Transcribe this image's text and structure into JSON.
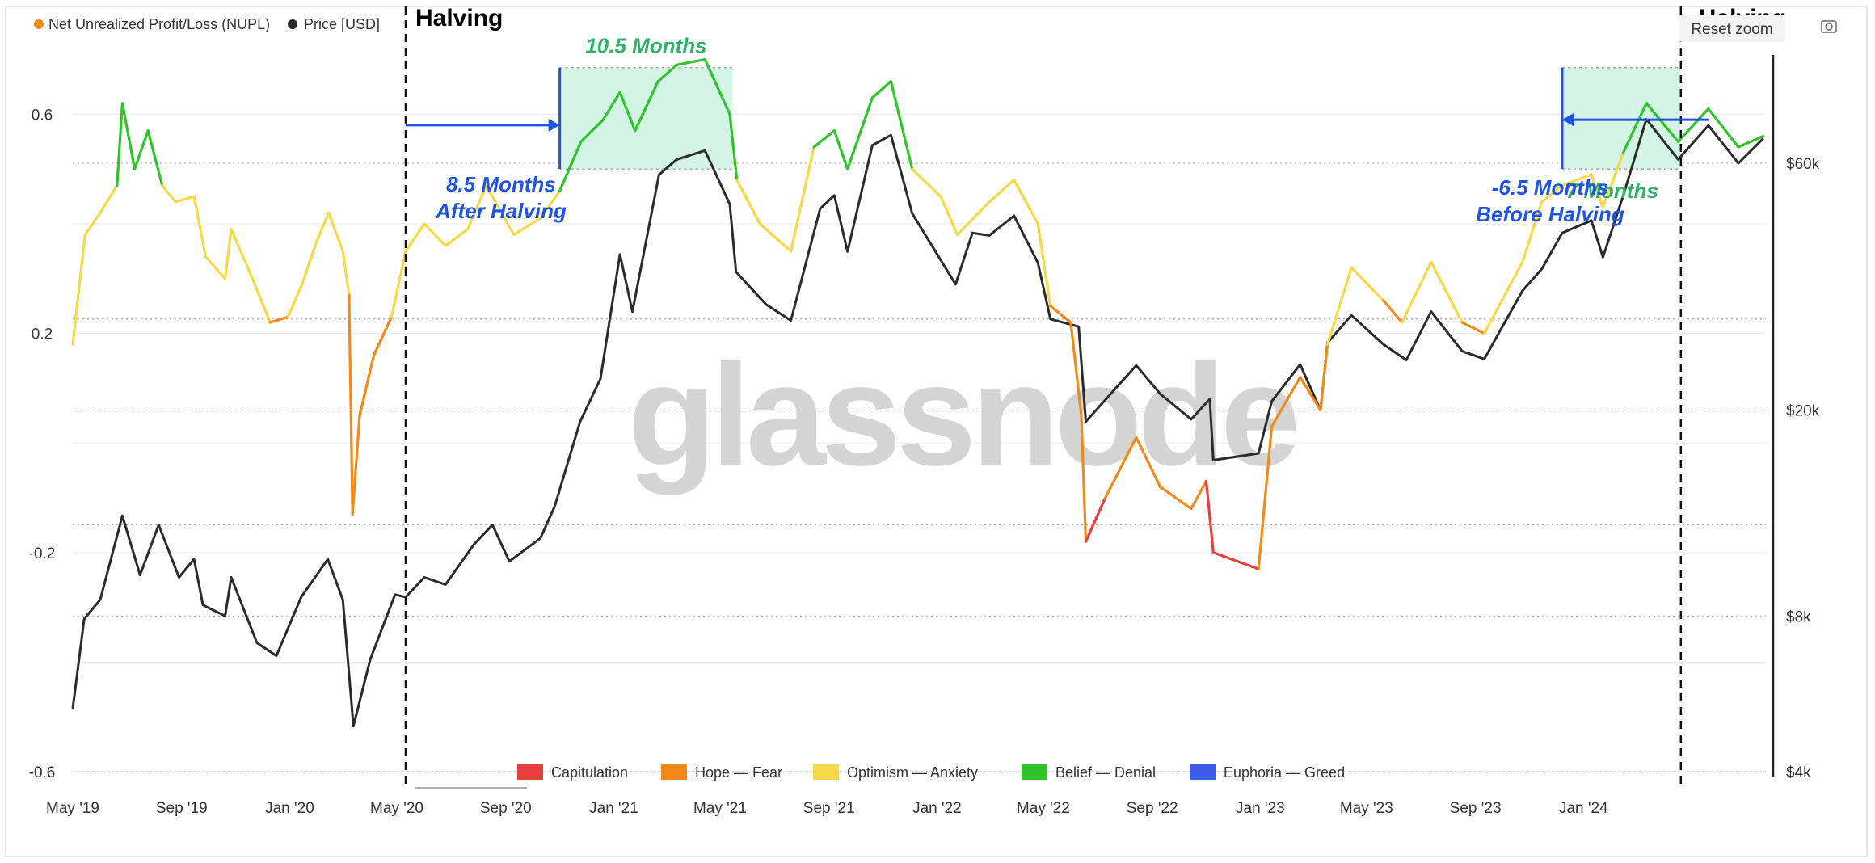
{
  "toolbar": {
    "reset_zoom_label": "Reset zoom"
  },
  "watermark": "glassnode",
  "colors": {
    "capitulation": "#e8403f",
    "hope_fear": "#f28a1a",
    "optimism_anxiety": "#f5d949",
    "belief_denial": "#2ec42a",
    "euphoria_greed": "#3b5ce8",
    "price": "#2b2b2b",
    "annotation_blue": "#1f53e0",
    "annotation_green": "#2fb06b",
    "highlight_fill": "#d3f3e5"
  },
  "chart_data": {
    "type": "line",
    "legend": {
      "top": [
        "Net Unrealized Profit/Loss (NUPL)",
        "Price [USD]"
      ],
      "bottom": [
        "Capitulation",
        "Hope — Fear",
        "Optimism — Anxiety",
        "Belief — Denial",
        "Euphoria — Greed"
      ]
    },
    "x_ticks": [
      "May '19",
      "Sep '19",
      "Jan '20",
      "May '20",
      "Sep '20",
      "Jan '21",
      "May '21",
      "Sep '21",
      "Jan '22",
      "May '22",
      "Sep '22",
      "Jan '23",
      "May '23",
      "Sep '23",
      "Jan '24"
    ],
    "xlim": [
      "2019-05-01",
      "2024-07-25"
    ],
    "y_left": {
      "ticks": [
        "0.6",
        "0.2",
        "-0.2",
        "-0.6"
      ],
      "ylim": [
        -0.6,
        0.72
      ]
    },
    "y_right": {
      "scale": "log",
      "ticks": [
        "$60k",
        "$20k",
        "$8k",
        "$4k"
      ],
      "ylim": [
        4000,
        100000
      ]
    },
    "series": [
      {
        "name": "Net Unrealized Profit/Loss (NUPL)",
        "axis": "left",
        "points": [
          [
            "2019-05-01",
            0.18
          ],
          [
            "2019-05-15",
            0.38
          ],
          [
            "2019-06-01",
            0.42
          ],
          [
            "2019-06-20",
            0.47
          ],
          [
            "2019-06-26",
            0.62
          ],
          [
            "2019-07-10",
            0.5
          ],
          [
            "2019-07-25",
            0.57
          ],
          [
            "2019-08-10",
            0.47
          ],
          [
            "2019-08-25",
            0.44
          ],
          [
            "2019-09-15",
            0.45
          ],
          [
            "2019-09-28",
            0.34
          ],
          [
            "2019-10-20",
            0.3
          ],
          [
            "2019-10-27",
            0.39
          ],
          [
            "2019-11-20",
            0.3
          ],
          [
            "2019-12-10",
            0.22
          ],
          [
            "2019-12-30",
            0.23
          ],
          [
            "2020-01-15",
            0.29
          ],
          [
            "2020-02-01",
            0.37
          ],
          [
            "2020-02-14",
            0.42
          ],
          [
            "2020-03-01",
            0.35
          ],
          [
            "2020-03-08",
            0.27
          ],
          [
            "2020-03-12",
            -0.13
          ],
          [
            "2020-03-20",
            0.05
          ],
          [
            "2020-04-05",
            0.16
          ],
          [
            "2020-04-25",
            0.23
          ],
          [
            "2020-05-11",
            0.35
          ],
          [
            "2020-06-01",
            0.4
          ],
          [
            "2020-06-25",
            0.36
          ],
          [
            "2020-07-20",
            0.39
          ],
          [
            "2020-08-10",
            0.47
          ],
          [
            "2020-09-10",
            0.38
          ],
          [
            "2020-10-10",
            0.41
          ],
          [
            "2020-11-01",
            0.46
          ],
          [
            "2020-11-25",
            0.55
          ],
          [
            "2020-12-20",
            0.59
          ],
          [
            "2021-01-08",
            0.64
          ],
          [
            "2021-01-25",
            0.57
          ],
          [
            "2021-02-20",
            0.66
          ],
          [
            "2021-03-13",
            0.69
          ],
          [
            "2021-04-14",
            0.7
          ],
          [
            "2021-05-12",
            0.6
          ],
          [
            "2021-05-20",
            0.48
          ],
          [
            "2021-06-15",
            0.4
          ],
          [
            "2021-07-20",
            0.35
          ],
          [
            "2021-08-15",
            0.54
          ],
          [
            "2021-09-07",
            0.57
          ],
          [
            "2021-09-22",
            0.5
          ],
          [
            "2021-10-20",
            0.63
          ],
          [
            "2021-11-10",
            0.66
          ],
          [
            "2021-12-04",
            0.5
          ],
          [
            "2022-01-05",
            0.45
          ],
          [
            "2022-01-24",
            0.38
          ],
          [
            "2022-03-01",
            0.44
          ],
          [
            "2022-03-29",
            0.48
          ],
          [
            "2022-04-25",
            0.4
          ],
          [
            "2022-05-09",
            0.25
          ],
          [
            "2022-06-01",
            0.22
          ],
          [
            "2022-06-13",
            0.05
          ],
          [
            "2022-06-18",
            -0.18
          ],
          [
            "2022-07-10",
            -0.1
          ],
          [
            "2022-08-14",
            0.01
          ],
          [
            "2022-09-10",
            -0.08
          ],
          [
            "2022-10-15",
            -0.12
          ],
          [
            "2022-11-01",
            -0.07
          ],
          [
            "2022-11-09",
            -0.2
          ],
          [
            "2022-12-30",
            -0.23
          ],
          [
            "2023-01-14",
            0.03
          ],
          [
            "2023-02-15",
            0.12
          ],
          [
            "2023-03-10",
            0.06
          ],
          [
            "2023-03-18",
            0.18
          ],
          [
            "2023-04-14",
            0.32
          ],
          [
            "2023-05-20",
            0.26
          ],
          [
            "2023-06-10",
            0.22
          ],
          [
            "2023-07-13",
            0.33
          ],
          [
            "2023-08-17",
            0.22
          ],
          [
            "2023-09-11",
            0.2
          ],
          [
            "2023-10-24",
            0.33
          ],
          [
            "2023-11-15",
            0.44
          ],
          [
            "2023-12-08",
            0.47
          ],
          [
            "2024-01-10",
            0.49
          ],
          [
            "2024-01-23",
            0.43
          ],
          [
            "2024-02-15",
            0.53
          ],
          [
            "2024-03-12",
            0.62
          ],
          [
            "2024-04-17",
            0.55
          ],
          [
            "2024-05-21",
            0.61
          ],
          [
            "2024-06-24",
            0.54
          ],
          [
            "2024-07-22",
            0.56
          ]
        ]
      },
      {
        "name": "Price [USD]",
        "axis": "right",
        "points": [
          [
            "2019-05-01",
            5300
          ],
          [
            "2019-05-14",
            7900
          ],
          [
            "2019-06-01",
            8600
          ],
          [
            "2019-06-26",
            12500
          ],
          [
            "2019-07-16",
            9600
          ],
          [
            "2019-08-06",
            12000
          ],
          [
            "2019-08-29",
            9500
          ],
          [
            "2019-09-15",
            10300
          ],
          [
            "2019-09-25",
            8400
          ],
          [
            "2019-10-20",
            8000
          ],
          [
            "2019-10-27",
            9500
          ],
          [
            "2019-11-25",
            7100
          ],
          [
            "2019-12-17",
            6700
          ],
          [
            "2020-01-14",
            8700
          ],
          [
            "2020-02-13",
            10300
          ],
          [
            "2020-03-01",
            8600
          ],
          [
            "2020-03-13",
            4900
          ],
          [
            "2020-04-01",
            6600
          ],
          [
            "2020-04-29",
            8800
          ],
          [
            "2020-05-11",
            8700
          ],
          [
            "2020-06-01",
            9500
          ],
          [
            "2020-06-25",
            9200
          ],
          [
            "2020-07-27",
            11000
          ],
          [
            "2020-08-17",
            12000
          ],
          [
            "2020-09-05",
            10200
          ],
          [
            "2020-10-10",
            11300
          ],
          [
            "2020-10-26",
            13000
          ],
          [
            "2020-11-24",
            19000
          ],
          [
            "2020-12-17",
            23000
          ],
          [
            "2021-01-08",
            40000
          ],
          [
            "2021-01-22",
            31000
          ],
          [
            "2021-02-21",
            57000
          ],
          [
            "2021-03-13",
            61000
          ],
          [
            "2021-04-14",
            63500
          ],
          [
            "2021-05-12",
            50000
          ],
          [
            "2021-05-19",
            37000
          ],
          [
            "2021-06-22",
            32000
          ],
          [
            "2021-07-20",
            29800
          ],
          [
            "2021-08-22",
            49000
          ],
          [
            "2021-09-07",
            52000
          ],
          [
            "2021-09-22",
            40500
          ],
          [
            "2021-10-20",
            65000
          ],
          [
            "2021-11-10",
            68000
          ],
          [
            "2021-12-04",
            48000
          ],
          [
            "2022-01-22",
            35000
          ],
          [
            "2022-02-10",
            44000
          ],
          [
            "2022-03-01",
            43500
          ],
          [
            "2022-03-29",
            47500
          ],
          [
            "2022-04-25",
            38500
          ],
          [
            "2022-05-09",
            30000
          ],
          [
            "2022-06-10",
            29000
          ],
          [
            "2022-06-18",
            19000
          ],
          [
            "2022-08-14",
            24400
          ],
          [
            "2022-09-10",
            21500
          ],
          [
            "2022-10-15",
            19200
          ],
          [
            "2022-11-05",
            21000
          ],
          [
            "2022-11-09",
            16000
          ],
          [
            "2022-12-30",
            16500
          ],
          [
            "2023-01-14",
            20800
          ],
          [
            "2023-02-15",
            24500
          ],
          [
            "2023-03-10",
            20000
          ],
          [
            "2023-03-18",
            27000
          ],
          [
            "2023-04-14",
            30500
          ],
          [
            "2023-05-20",
            26800
          ],
          [
            "2023-06-15",
            25000
          ],
          [
            "2023-07-13",
            31000
          ],
          [
            "2023-08-17",
            26000
          ],
          [
            "2023-09-11",
            25100
          ],
          [
            "2023-10-24",
            34000
          ],
          [
            "2023-11-15",
            37500
          ],
          [
            "2023-12-08",
            44000
          ],
          [
            "2024-01-10",
            46500
          ],
          [
            "2024-01-23",
            39500
          ],
          [
            "2024-02-15",
            52000
          ],
          [
            "2024-03-12",
            73000
          ],
          [
            "2024-04-17",
            61000
          ],
          [
            "2024-05-21",
            71000
          ],
          [
            "2024-06-24",
            60000
          ],
          [
            "2024-07-22",
            67000
          ]
        ]
      }
    ],
    "zones": [
      {
        "name": "Capitulation",
        "color": "#e8403f",
        "from": -1.0,
        "to": -0.12
      },
      {
        "name": "Hope — Fear",
        "color": "#f28a1a",
        "from": -0.12,
        "to": 0.25
      },
      {
        "name": "Optimism — Anxiety",
        "color": "#f5d949",
        "from": 0.25,
        "to": 0.5
      },
      {
        "name": "Belief — Denial",
        "color": "#2ec42a",
        "from": 0.5,
        "to": 0.75
      },
      {
        "name": "Euphoria — Greed",
        "color": "#3b5ce8",
        "from": 0.75,
        "to": 1.0
      }
    ],
    "halvings": [
      {
        "label": "Halving",
        "date": "2020-05-11"
      },
      {
        "label": "Halving",
        "date": "2024-04-20"
      }
    ],
    "highlights": [
      {
        "x_from": "2020-11-01",
        "x_to": "2021-05-15",
        "y_from": 0.5,
        "y_to": 0.685,
        "label": "10.5 Months"
      },
      {
        "x_from": "2023-12-08",
        "x_to": "2024-04-20",
        "y_from": 0.5,
        "y_to": 0.685,
        "label": "7 Months"
      }
    ],
    "annotations": [
      {
        "lines": [
          "8.5 Months",
          "After Halving"
        ],
        "arrow_from": "2020-05-11",
        "arrow_to": "2020-11-01",
        "y": 0.58
      },
      {
        "lines": [
          "-6.5 Months",
          "Before Halving"
        ],
        "arrow_from": "2024-05-22",
        "arrow_to": "2023-12-08",
        "y": 0.59
      }
    ]
  }
}
